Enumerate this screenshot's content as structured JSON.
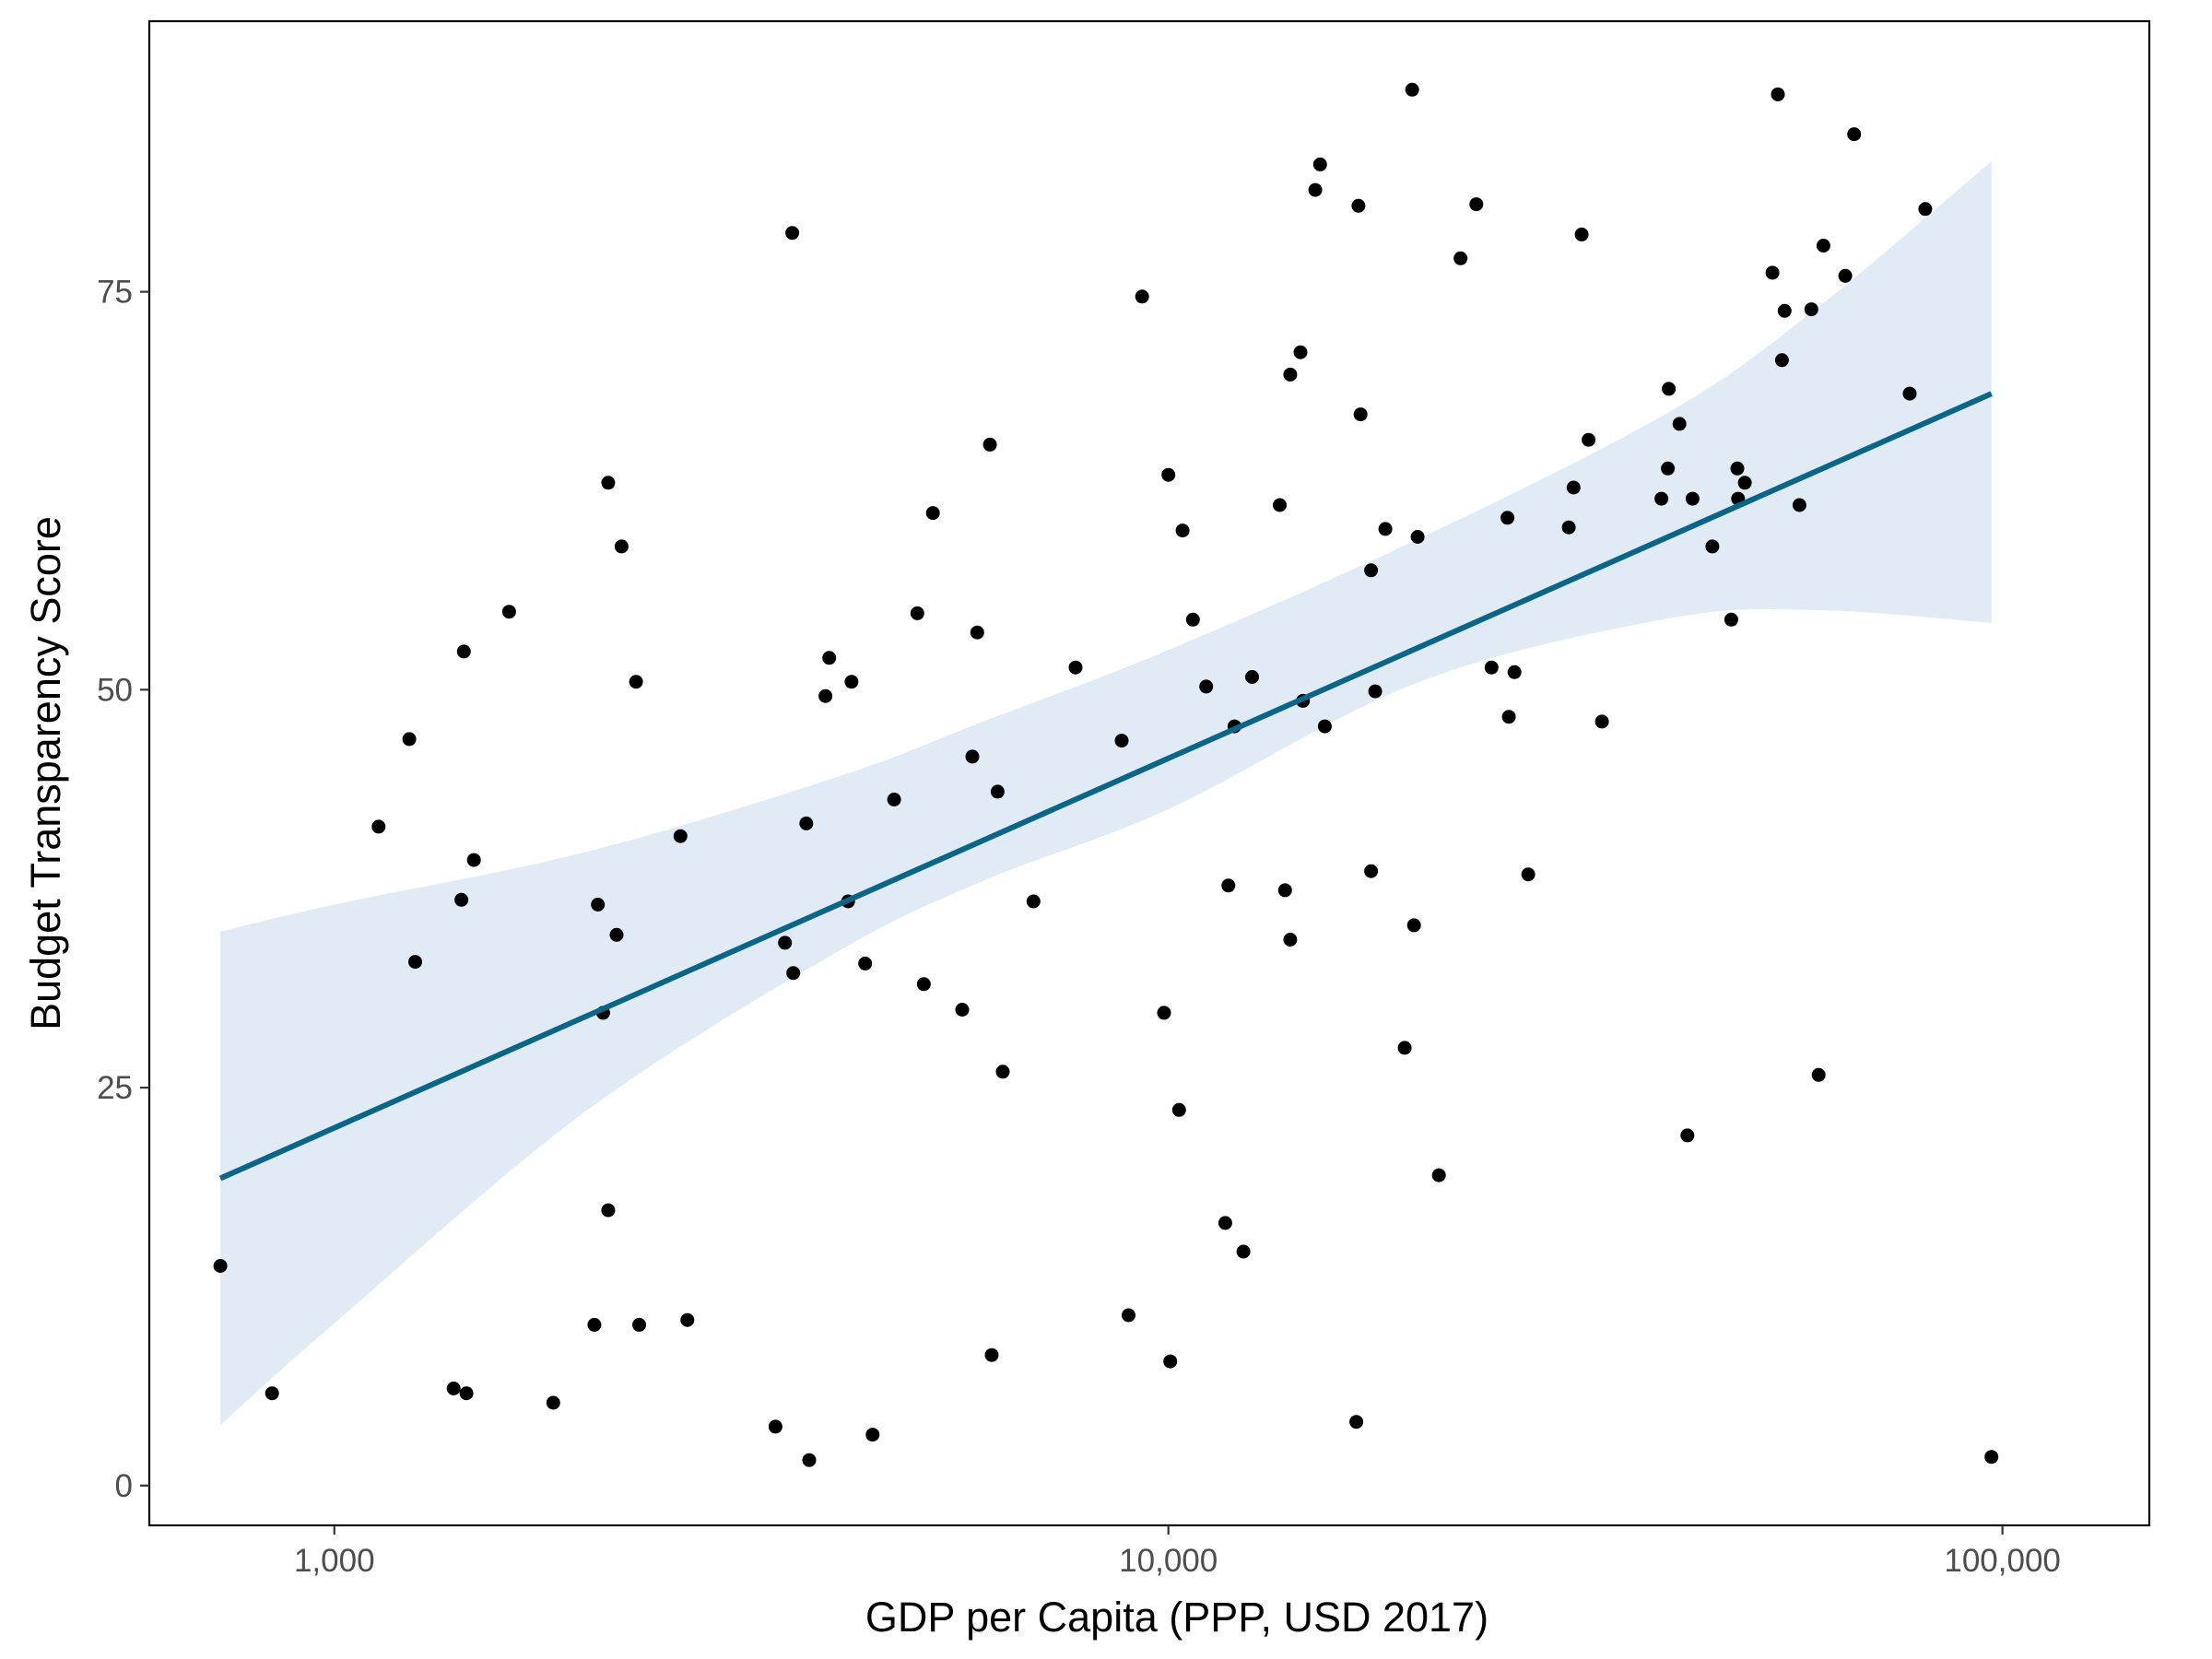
{
  "chart_data": {
    "type": "scatter",
    "title": "",
    "xlabel": "GDP per Capita (PPP, USD 2017)",
    "ylabel": "Budget Transparency Score",
    "x_scale": "log10",
    "xlim": [
      600,
      150000
    ],
    "ylim": [
      -2.5,
      92
    ],
    "x_ticks": [
      1000,
      10000,
      100000
    ],
    "x_tick_labels": [
      "1,000",
      "10,000",
      "100,000"
    ],
    "y_ticks": [
      0,
      25,
      50,
      75
    ],
    "y_tick_labels": [
      "0",
      "25",
      "50",
      "75"
    ],
    "grid": false,
    "legend": "none",
    "colors": {
      "points": "#000000",
      "fit_line": "#0a6587",
      "confidence_band": "#dbe8f5",
      "panel_border": "#000000"
    },
    "fit_line": {
      "x": [
        730,
        97000
      ],
      "y": [
        19.3,
        68.6
      ]
    },
    "confidence_band": {
      "x": [
        730,
        1000,
        2000,
        4000,
        6000,
        10000,
        20000,
        40000,
        60000,
        97000
      ],
      "upper": [
        34.8,
        36.5,
        39.8,
        44.5,
        48.0,
        52.5,
        59.5,
        67.5,
        74.0,
        83.2
      ],
      "lower": [
        3.8,
        10.2,
        23.5,
        33.5,
        38.0,
        42.5,
        50.5,
        54.5,
        55.0,
        54.2
      ]
    },
    "points": [
      {
        "x": 730,
        "y": 13.8
      },
      {
        "x": 842,
        "y": 5.8
      },
      {
        "x": 1130,
        "y": 41.4
      },
      {
        "x": 1230,
        "y": 46.9
      },
      {
        "x": 1250,
        "y": 32.9
      },
      {
        "x": 1390,
        "y": 6.1
      },
      {
        "x": 1420,
        "y": 36.8
      },
      {
        "x": 1430,
        "y": 52.4
      },
      {
        "x": 1440,
        "y": 5.8
      },
      {
        "x": 1470,
        "y": 39.3
      },
      {
        "x": 1620,
        "y": 54.9
      },
      {
        "x": 1830,
        "y": 5.2
      },
      {
        "x": 2050,
        "y": 10.1
      },
      {
        "x": 2070,
        "y": 36.5
      },
      {
        "x": 2100,
        "y": 29.7
      },
      {
        "x": 2130,
        "y": 17.3
      },
      {
        "x": 2130,
        "y": 63.0
      },
      {
        "x": 2180,
        "y": 34.6
      },
      {
        "x": 2210,
        "y": 59.0
      },
      {
        "x": 2300,
        "y": 50.5
      },
      {
        "x": 2320,
        "y": 10.1
      },
      {
        "x": 2600,
        "y": 40.8
      },
      {
        "x": 2650,
        "y": 10.4
      },
      {
        "x": 3380,
        "y": 3.7
      },
      {
        "x": 3470,
        "y": 34.1
      },
      {
        "x": 3540,
        "y": 78.7
      },
      {
        "x": 3550,
        "y": 32.2
      },
      {
        "x": 3680,
        "y": 41.6
      },
      {
        "x": 3710,
        "y": 1.6
      },
      {
        "x": 3880,
        "y": 49.6
      },
      {
        "x": 3920,
        "y": 52.0
      },
      {
        "x": 4130,
        "y": 36.7
      },
      {
        "x": 4170,
        "y": 50.5
      },
      {
        "x": 4330,
        "y": 32.8
      },
      {
        "x": 4420,
        "y": 3.2
      },
      {
        "x": 4690,
        "y": 43.1
      },
      {
        "x": 5000,
        "y": 54.8
      },
      {
        "x": 5090,
        "y": 31.5
      },
      {
        "x": 5220,
        "y": 61.1
      },
      {
        "x": 5660,
        "y": 29.9
      },
      {
        "x": 5820,
        "y": 45.8
      },
      {
        "x": 5900,
        "y": 53.6
      },
      {
        "x": 6110,
        "y": 65.4
      },
      {
        "x": 6140,
        "y": 8.2
      },
      {
        "x": 6240,
        "y": 43.6
      },
      {
        "x": 6330,
        "y": 26.0
      },
      {
        "x": 6890,
        "y": 36.7
      },
      {
        "x": 7740,
        "y": 51.4
      },
      {
        "x": 8790,
        "y": 46.8
      },
      {
        "x": 8960,
        "y": 10.7
      },
      {
        "x": 9300,
        "y": 74.7
      },
      {
        "x": 9880,
        "y": 29.7
      },
      {
        "x": 10000,
        "y": 63.5
      },
      {
        "x": 10050,
        "y": 7.8
      },
      {
        "x": 10300,
        "y": 23.6
      },
      {
        "x": 10400,
        "y": 60.0
      },
      {
        "x": 10700,
        "y": 54.4
      },
      {
        "x": 11100,
        "y": 50.2
      },
      {
        "x": 11700,
        "y": 16.5
      },
      {
        "x": 11800,
        "y": 37.7
      },
      {
        "x": 12000,
        "y": 47.7
      },
      {
        "x": 12300,
        "y": 14.7
      },
      {
        "x": 12600,
        "y": 50.8
      },
      {
        "x": 13600,
        "y": 61.6
      },
      {
        "x": 13800,
        "y": 37.4
      },
      {
        "x": 14000,
        "y": 34.3
      },
      {
        "x": 14000,
        "y": 69.8
      },
      {
        "x": 14400,
        "y": 71.2
      },
      {
        "x": 14500,
        "y": 49.3
      },
      {
        "x": 15000,
        "y": 81.4
      },
      {
        "x": 15200,
        "y": 83.0
      },
      {
        "x": 15400,
        "y": 47.7
      },
      {
        "x": 16800,
        "y": 4.0
      },
      {
        "x": 16900,
        "y": 80.4
      },
      {
        "x": 17000,
        "y": 67.3
      },
      {
        "x": 17500,
        "y": 57.5
      },
      {
        "x": 17500,
        "y": 38.6
      },
      {
        "x": 17700,
        "y": 49.9
      },
      {
        "x": 18200,
        "y": 60.1
      },
      {
        "x": 19200,
        "y": 27.5
      },
      {
        "x": 19600,
        "y": 87.7
      },
      {
        "x": 19700,
        "y": 35.2
      },
      {
        "x": 19900,
        "y": 59.6
      },
      {
        "x": 21100,
        "y": 19.5
      },
      {
        "x": 22400,
        "y": 77.1
      },
      {
        "x": 23400,
        "y": 80.5
      },
      {
        "x": 24400,
        "y": 51.4
      },
      {
        "x": 25500,
        "y": 60.8
      },
      {
        "x": 25600,
        "y": 48.3
      },
      {
        "x": 26000,
        "y": 51.1
      },
      {
        "x": 27000,
        "y": 38.4
      },
      {
        "x": 30200,
        "y": 60.2
      },
      {
        "x": 30600,
        "y": 62.7
      },
      {
        "x": 31300,
        "y": 78.6
      },
      {
        "x": 31900,
        "y": 65.7
      },
      {
        "x": 33100,
        "y": 48.0
      },
      {
        "x": 39000,
        "y": 62.0
      },
      {
        "x": 39700,
        "y": 63.9
      },
      {
        "x": 39800,
        "y": 68.9
      },
      {
        "x": 41000,
        "y": 66.7
      },
      {
        "x": 41900,
        "y": 22.0
      },
      {
        "x": 42500,
        "y": 62.0
      },
      {
        "x": 44900,
        "y": 59.0
      },
      {
        "x": 47300,
        "y": 54.4
      },
      {
        "x": 48200,
        "y": 62.0
      },
      {
        "x": 48100,
        "y": 63.9
      },
      {
        "x": 49100,
        "y": 63.0
      },
      {
        "x": 53000,
        "y": 76.2
      },
      {
        "x": 53800,
        "y": 87.4
      },
      {
        "x": 54400,
        "y": 70.7
      },
      {
        "x": 54800,
        "y": 73.8
      },
      {
        "x": 57100,
        "y": 61.6
      },
      {
        "x": 59000,
        "y": 73.9
      },
      {
        "x": 60200,
        "y": 25.8
      },
      {
        "x": 61000,
        "y": 77.9
      },
      {
        "x": 64800,
        "y": 76.0
      },
      {
        "x": 66400,
        "y": 84.9
      },
      {
        "x": 77400,
        "y": 68.6
      },
      {
        "x": 80800,
        "y": 80.2
      },
      {
        "x": 97000,
        "y": 1.8
      }
    ]
  }
}
